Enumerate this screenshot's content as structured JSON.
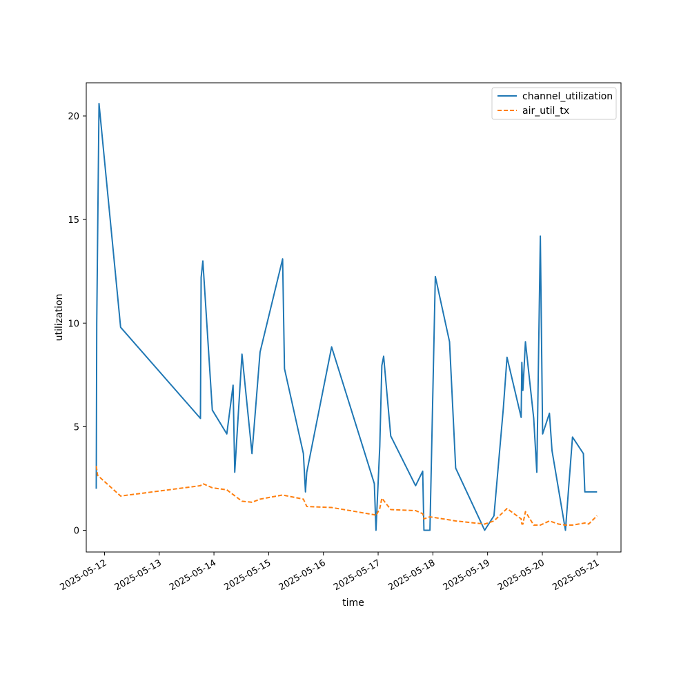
{
  "chart_data": {
    "type": "line",
    "xlabel": "time",
    "ylabel": "utilization",
    "xlim": [
      "2025-05-11T16:00",
      "2025-05-21T10:30"
    ],
    "ylim": [
      -1.05,
      21.6
    ],
    "x_ticks": [
      "2025-05-12",
      "2025-05-13",
      "2025-05-14",
      "2025-05-15",
      "2025-05-16",
      "2025-05-17",
      "2025-05-18",
      "2025-05-19",
      "2025-05-20",
      "2025-05-21"
    ],
    "y_ticks": [
      0,
      5,
      10,
      15,
      20
    ],
    "legend_position": "top-right",
    "grid": false,
    "series": [
      {
        "name": "channel_utilization",
        "color": "#1f77b4",
        "dash": "solid",
        "x": [
          "2025-05-11T20:24",
          "2025-05-11T20:36",
          "2025-05-11T21:36",
          "2025-05-12T07:04",
          "2025-05-13T18:05",
          "2025-05-13T18:22",
          "2025-05-13T19:08",
          "2025-05-13T23:16",
          "2025-05-14T05:39",
          "2025-05-14T08:24",
          "2025-05-14T09:07",
          "2025-05-14T12:17",
          "2025-05-14T16:41",
          "2025-05-14T20:14",
          "2025-05-15T06:07",
          "2025-05-15T06:55",
          "2025-05-15T15:14",
          "2025-05-15T16:08",
          "2025-05-15T16:42",
          "2025-05-16T03:35",
          "2025-05-16T22:19",
          "2025-05-16T23:04",
          "2025-05-17T00:43",
          "2025-05-17T01:38",
          "2025-05-17T02:24",
          "2025-05-17T05:31",
          "2025-05-17T16:26",
          "2025-05-17T19:32",
          "2025-05-17T20:05",
          "2025-05-17T22:43",
          "2025-05-18T01:05",
          "2025-05-18T07:18",
          "2025-05-18T10:01",
          "2025-05-18T22:43",
          "2025-05-19T02:48",
          "2025-05-19T06:54",
          "2025-05-19T08:31",
          "2025-05-19T14:43",
          "2025-05-19T15:02",
          "2025-05-19T15:29",
          "2025-05-19T16:36",
          "2025-05-19T20:14",
          "2025-05-19T21:36",
          "2025-05-19T23:07",
          "2025-05-20T00:07",
          "2025-05-20T03:07",
          "2025-05-20T04:14",
          "2025-05-20T10:08",
          "2025-05-20T13:13",
          "2025-05-20T18:00",
          "2025-05-20T18:38",
          "2025-05-21T00:00"
        ],
        "y": [
          2.0,
          10.0,
          20.6,
          9.8,
          5.4,
          12.2,
          13.0,
          5.8,
          4.65,
          7.0,
          2.8,
          8.5,
          3.7,
          8.6,
          13.1,
          7.8,
          3.7,
          1.85,
          2.8,
          8.85,
          2.25,
          0.0,
          4.05,
          7.95,
          8.4,
          4.55,
          2.15,
          2.85,
          0.0,
          0.0,
          12.25,
          9.1,
          3.0,
          0.0,
          0.7,
          5.9,
          8.35,
          5.45,
          8.1,
          6.75,
          9.1,
          5.4,
          2.8,
          14.2,
          4.65,
          5.65,
          3.85,
          0.0,
          4.5,
          3.7,
          1.85,
          1.85
        ]
      },
      {
        "name": "air_util_tx",
        "color": "#ff7f0e",
        "dash": "dashed",
        "x": [
          "2025-05-11T20:24",
          "2025-05-11T21:00",
          "2025-05-12T07:04",
          "2025-05-13T18:05",
          "2025-05-13T19:08",
          "2025-05-13T23:16",
          "2025-05-14T05:39",
          "2025-05-14T12:17",
          "2025-05-14T16:41",
          "2025-05-14T20:14",
          "2025-05-15T06:07",
          "2025-05-15T15:14",
          "2025-05-15T16:42",
          "2025-05-16T03:35",
          "2025-05-16T22:19",
          "2025-05-16T23:04",
          "2025-05-17T00:43",
          "2025-05-17T01:38",
          "2025-05-17T05:31",
          "2025-05-17T16:26",
          "2025-05-17T19:32",
          "2025-05-17T20:05",
          "2025-05-17T22:43",
          "2025-05-18T07:18",
          "2025-05-18T10:01",
          "2025-05-18T22:43",
          "2025-05-19T02:48",
          "2025-05-19T08:31",
          "2025-05-19T14:43",
          "2025-05-19T15:02",
          "2025-05-19T15:29",
          "2025-05-19T16:36",
          "2025-05-19T20:14",
          "2025-05-19T23:07",
          "2025-05-20T03:07",
          "2025-05-20T07:07",
          "2025-05-20T10:08",
          "2025-05-20T13:13",
          "2025-05-20T18:38",
          "2025-05-20T20:19",
          "2025-05-21T00:00"
        ],
        "y": [
          3.1,
          2.65,
          1.65,
          2.15,
          2.25,
          2.05,
          1.95,
          1.4,
          1.35,
          1.5,
          1.7,
          1.5,
          1.15,
          1.1,
          0.75,
          0.7,
          1.05,
          1.55,
          1.0,
          0.95,
          0.8,
          0.55,
          0.65,
          0.5,
          0.45,
          0.3,
          0.45,
          1.05,
          0.55,
          0.3,
          0.3,
          0.9,
          0.25,
          0.25,
          0.45,
          0.3,
          0.25,
          0.25,
          0.35,
          0.3,
          0.7
        ]
      }
    ]
  }
}
